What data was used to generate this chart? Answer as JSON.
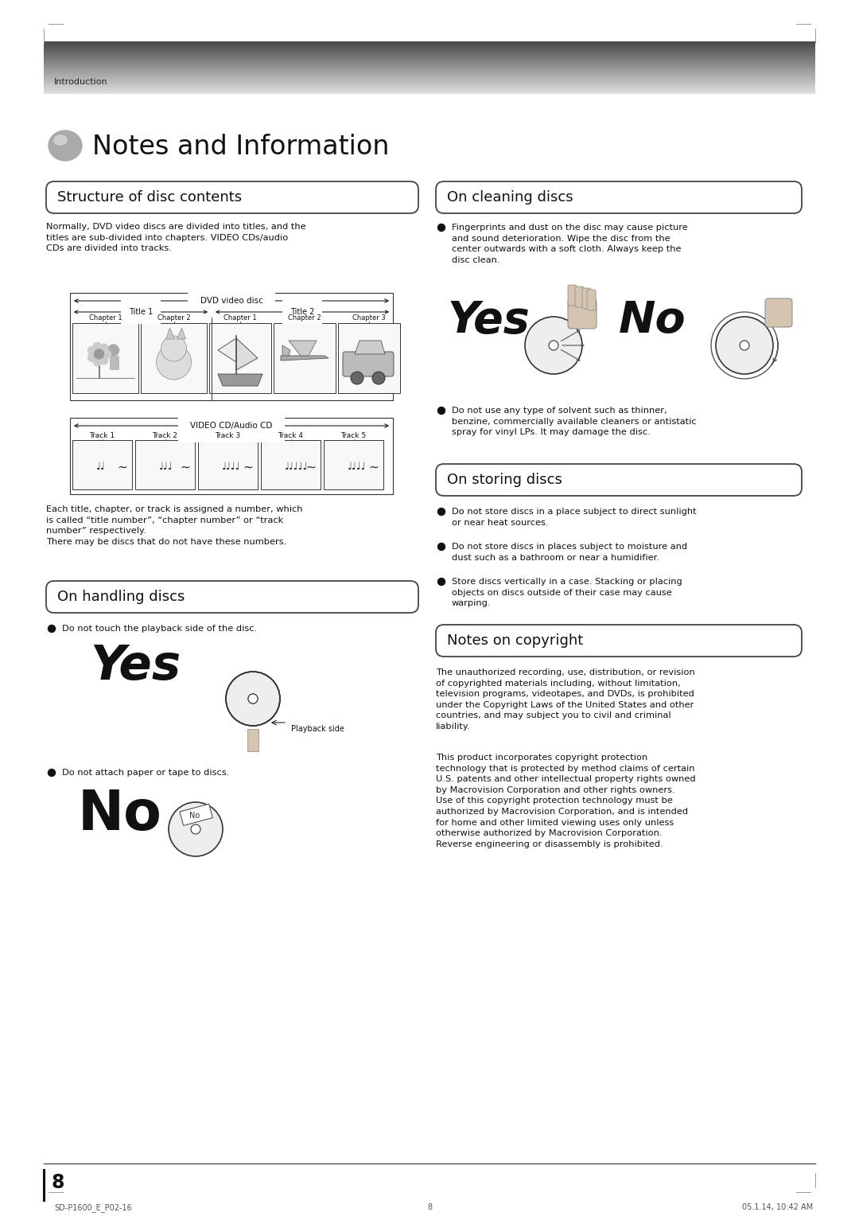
{
  "page_bg": "#ffffff",
  "header_text": "Introduction",
  "page_title": "Notes and Information",
  "page_number": "8",
  "footer_left": "SD-P1600_E_P02-16",
  "footer_center": "8",
  "footer_right": "05.1.14, 10:42 AM",
  "section1_title": "Structure of disc contents",
  "section1_body": "Normally, DVD video discs are divided into titles, and the\ntitles are sub-divided into chapters. VIDEO CDs/audio\nCDs are divided into tracks.",
  "section1_body2": "Each title, chapter, or track is assigned a number, which\nis called “title number”, “chapter number” or “track\nnumber” respectively.\nThere may be discs that do not have these numbers.",
  "dvd_label": "DVD video disc",
  "title1_label": "Title 1",
  "title2_label": "Title 2",
  "chapters": [
    "Chapter 1",
    "Chapter 2",
    "Chapter 1",
    "Chapter 2",
    "Chapter 3"
  ],
  "vcd_label": "VIDEO CD/Audio CD",
  "tracks": [
    "Track 1",
    "Track 2",
    "Track 3",
    "Track 4",
    "Track 5"
  ],
  "section2_title": "On cleaning discs",
  "section2_bullet1": "Fingerprints and dust on the disc may cause picture\nand sound deterioration. Wipe the disc from the\ncenter outwards with a soft cloth. Always keep the\ndisc clean.",
  "section2_yes": "Yes",
  "section2_no": "No",
  "section2_bullet2": "Do not use any type of solvent such as thinner,\nbenzine, commercially available cleaners or antistatic\nspray for vinyl LPs. It may damage the disc.",
  "section3_title": "On handling discs",
  "section3_bullet1": "Do not touch the playback side of the disc.",
  "section3_yes": "Yes",
  "section3_playback": "Playback side",
  "section3_bullet2": "Do not attach paper or tape to discs.",
  "section3_no": "No",
  "section4_title": "On storing discs",
  "section4_bullet1": "Do not store discs in a place subject to direct sunlight\nor near heat sources.",
  "section4_bullet2": "Do not store discs in places subject to moisture and\ndust such as a bathroom or near a humidifier.",
  "section4_bullet3": "Store discs vertically in a case. Stacking or placing\nobjects on discs outside of their case may cause\nwarping.",
  "section5_title": "Notes on copyright",
  "section5_body1": "The unauthorized recording, use, distribution, or revision\nof copyrighted materials including, without limitation,\ntelevision programs, videotapes, and DVDs, is prohibited\nunder the Copyright Laws of the United States and other\ncountries, and may subject you to civil and criminal\nliability.",
  "section5_body2": "This product incorporates copyright protection\ntechnology that is protected by method claims of certain\nU.S. patents and other intellectual property rights owned\nby Macrovision Corporation and other rights owners.\nUse of this copyright protection technology must be\nautho rized by Macrovision Corporation, and is intended\nfor home and other limited viewing uses only unless\notherwise authorized by Macrovision Corporation.\nReverse engineering or disassembly is prohibited."
}
